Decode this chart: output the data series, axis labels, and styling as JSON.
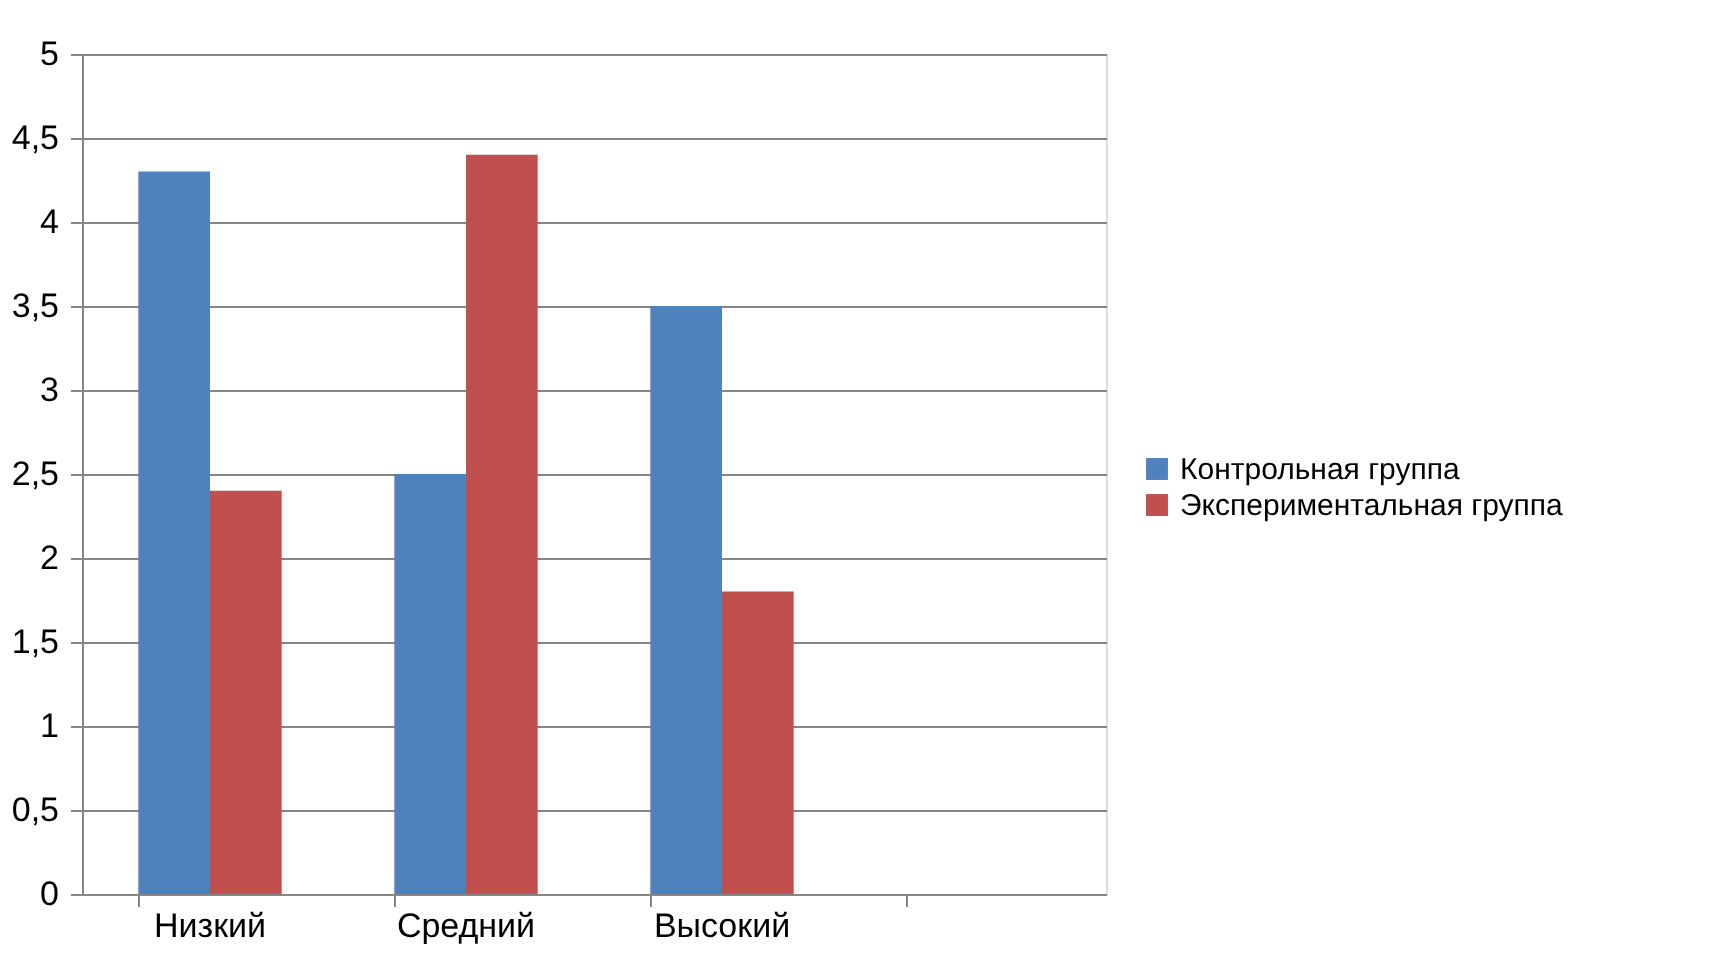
{
  "chart_data": {
    "type": "bar",
    "categories": [
      "Низкий",
      "Средний",
      "Высокий",
      null
    ],
    "series": [
      {
        "name": "Контрольная группа",
        "color": "#4f81bd",
        "values": [
          4.3,
          2.5,
          3.5,
          null
        ]
      },
      {
        "name": "Экспериментальная группа",
        "color": "#c0504d",
        "values": [
          2.4,
          4.4,
          1.8,
          null
        ]
      }
    ],
    "ylim": [
      0,
      5
    ],
    "yticks": [
      0,
      {
        "value": 0.5,
        "label": "0,5"
      },
      1,
      {
        "value": 1.5,
        "label": "1,5"
      },
      2,
      {
        "value": 2.5,
        "label": "2,5"
      },
      3,
      {
        "value": 3.5,
        "label": "3,5"
      },
      4,
      {
        "value": 4.5,
        "label": "4,5"
      },
      5
    ],
    "grid": "y",
    "legend": "right"
  }
}
